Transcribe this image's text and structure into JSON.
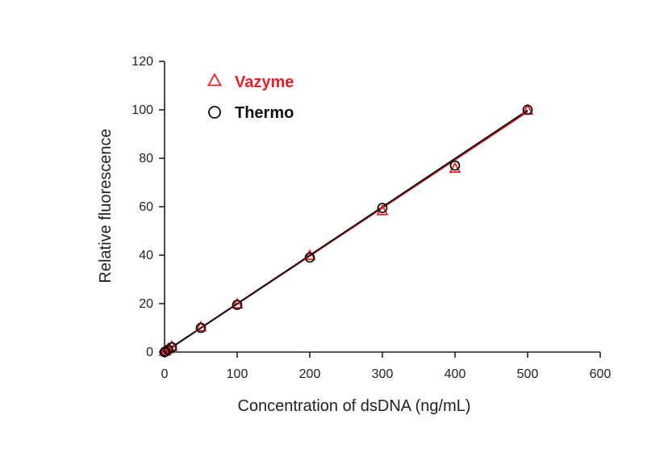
{
  "chart_data": {
    "type": "scatter",
    "xlabel": "Concentration of dsDNA (ng/mL)",
    "ylabel": "Relative fluorescence",
    "xlim": [
      0,
      600
    ],
    "ylim": [
      0,
      120
    ],
    "xticks": [
      0,
      100,
      200,
      300,
      400,
      500,
      600
    ],
    "yticks": [
      0,
      20,
      40,
      60,
      80,
      100,
      120
    ],
    "xtick_labels": [
      "0",
      "100",
      "200",
      "300",
      "400",
      "500",
      "600"
    ],
    "ytick_labels": [
      "0",
      "20",
      "40",
      "60",
      "80",
      "100",
      "120"
    ],
    "grid": false,
    "legend_position": "top-left",
    "series": [
      {
        "name": "Vazyme",
        "marker": "triangle",
        "color": "#e8202a",
        "x": [
          0,
          1,
          5,
          10,
          50,
          100,
          200,
          300,
          400,
          500
        ],
        "y": [
          0,
          0.2,
          1,
          2,
          10,
          19.5,
          39.5,
          58,
          75.5,
          99.5
        ],
        "fit": [
          0,
          0,
          500,
          99.2
        ]
      },
      {
        "name": "Thermo",
        "marker": "circle",
        "color": "#111111",
        "x": [
          0,
          1,
          5,
          10,
          50,
          100,
          200,
          300,
          400,
          500
        ],
        "y": [
          0,
          0.2,
          1,
          2,
          10,
          19.5,
          39,
          59.5,
          77,
          100
        ],
        "fit": [
          0,
          0,
          500,
          99.8
        ]
      }
    ]
  }
}
